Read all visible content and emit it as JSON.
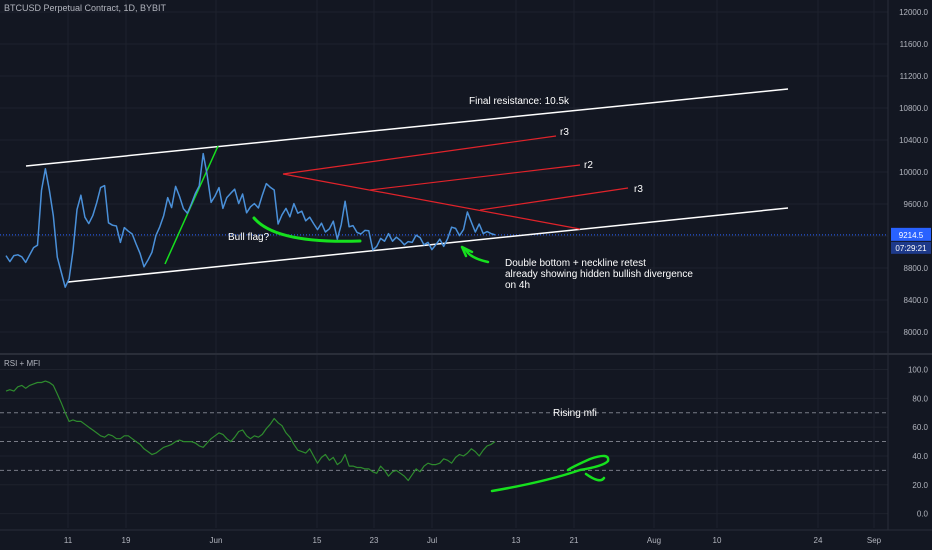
{
  "header": {
    "symbol_title": "BTCUSD Perpetual Contract, 1D, BYBIT",
    "indicator_title": "RSI + MFI"
  },
  "colors": {
    "background": "#131722",
    "price_line": "#4a90d9",
    "channel": "#ffffff",
    "resistance": "#e0232a",
    "drawing_green": "#16e01e",
    "indicator_line": "#2e8b2e",
    "grid": "#1e222d",
    "axis_text": "#b2b5be",
    "price_tag": "#2962ff"
  },
  "icons": [
    "arrow-up-drawing",
    "curve-drawing"
  ],
  "chart_data": [
    {
      "type": "line",
      "title": "BTCUSD Perpetual Contract, 1D, BYBIT",
      "x_tick_labels": [
        "11",
        "19",
        "Jun",
        "15",
        "23",
        "Jul",
        "13",
        "21",
        "Aug",
        "10",
        "24",
        "Sep"
      ],
      "y_ticks": [
        8000,
        8400,
        8800,
        9200,
        9600,
        10000,
        10400,
        10800,
        11200,
        11600,
        12000
      ],
      "y_tick_labels": [
        "8000.0",
        "8400.0",
        "8800.0",
        "9200.0",
        "9600.0",
        "10000.0",
        "10400.0",
        "10800.0",
        "11200.0",
        "11600.0",
        "12000.0"
      ],
      "ylim": [
        7750,
        12150
      ],
      "last_price": "9214.5",
      "countdown": "07:29:21",
      "series": [
        {
          "x": [
            0,
            4,
            8,
            12,
            16,
            20,
            24,
            28,
            32,
            36,
            40,
            44,
            48,
            52,
            56,
            60,
            64,
            68,
            72,
            76,
            80,
            84,
            88,
            92,
            96,
            100,
            104,
            108,
            112,
            116,
            120,
            124,
            128,
            132,
            136,
            140,
            144,
            148,
            152,
            156,
            160,
            164,
            168,
            172,
            176,
            180,
            184,
            188,
            192,
            196,
            200,
            204,
            208,
            212,
            216,
            220,
            224,
            228,
            232,
            236,
            240,
            244,
            248,
            252,
            256,
            260,
            264,
            268,
            272,
            276,
            280,
            284,
            288,
            292,
            296,
            300,
            304,
            308,
            312,
            316,
            320,
            324,
            328,
            332,
            336,
            340,
            344,
            348,
            352,
            356,
            360,
            364,
            368,
            372,
            376,
            380,
            384,
            388,
            392,
            396,
            400,
            404,
            408,
            412,
            416,
            420,
            424,
            428,
            432,
            436,
            440,
            444,
            448,
            452,
            456,
            460,
            464,
            468,
            472,
            476,
            480,
            484,
            488,
            492,
            496
          ],
          "y": [
            8955,
            8880,
            8955,
            8965,
            8940,
            8870,
            8965,
            9055,
            9085,
            9770,
            10040,
            9770,
            9455,
            8935,
            8750,
            8560,
            8665,
            9015,
            9530,
            9710,
            9435,
            9355,
            9455,
            9615,
            9805,
            9830,
            9365,
            9335,
            9325,
            9120,
            9305,
            9260,
            9225,
            9100,
            8980,
            8815,
            8900,
            8995,
            9205,
            9315,
            9455,
            9680,
            9555,
            9820,
            9695,
            9540,
            9485,
            9600,
            9730,
            9825,
            10230,
            9965,
            9620,
            9700,
            9805,
            9545,
            9680,
            9735,
            9785,
            9605,
            9725,
            9490,
            9565,
            9605,
            9550,
            9710,
            9855,
            9810,
            9775,
            9350,
            9465,
            9545,
            9440,
            9605,
            9485,
            9510,
            9390,
            9435,
            9355,
            9280,
            9360,
            9250,
            9290,
            9385,
            9160,
            9340,
            9635,
            9315,
            9330,
            9245,
            9225,
            9270,
            9265,
            9025,
            9070,
            9170,
            9135,
            9230,
            9135,
            9185,
            9145,
            9090,
            9130,
            9120,
            9210,
            9180,
            9090,
            9120,
            9030,
            9090,
            9160,
            9070,
            9170,
            9310,
            9295,
            9205,
            9280,
            9500,
            9375,
            9250,
            9350,
            9230,
            9255,
            9230,
            9215
          ]
        }
      ],
      "annotations": [
        {
          "text": "Final resistance: 10.5k"
        },
        {
          "text": "r3"
        },
        {
          "text": "r2"
        },
        {
          "text": "r3"
        },
        {
          "text": "Bull flag?"
        },
        {
          "text": "Double bottom + neckline retest"
        },
        {
          "text": "already showing hidden bullish divergence"
        },
        {
          "text": "on 4h"
        }
      ]
    },
    {
      "type": "line",
      "title": "RSI + MFI",
      "y_ticks": [
        0,
        20,
        40,
        60,
        80,
        100
      ],
      "y_tick_labels": [
        "0.0",
        "20.0",
        "40.0",
        "60.0",
        "80.0",
        "100.0"
      ],
      "ylim": [
        -10,
        108
      ],
      "reference_levels": [
        70,
        50,
        30
      ],
      "series": [
        {
          "x": [
            0,
            4,
            8,
            12,
            16,
            20,
            24,
            28,
            32,
            36,
            40,
            44,
            48,
            52,
            56,
            60,
            64,
            68,
            72,
            76,
            80,
            84,
            88,
            92,
            96,
            100,
            104,
            108,
            112,
            116,
            120,
            124,
            128,
            132,
            136,
            140,
            144,
            148,
            152,
            156,
            160,
            164,
            168,
            172,
            176,
            180,
            184,
            188,
            192,
            196,
            200,
            204,
            208,
            212,
            216,
            220,
            224,
            228,
            232,
            236,
            240,
            244,
            248,
            252,
            256,
            260,
            264,
            268,
            272,
            276,
            280,
            284,
            288,
            292,
            296,
            300,
            304,
            308,
            312,
            316,
            320,
            324,
            328,
            332,
            336,
            340,
            344,
            348,
            352,
            356,
            360,
            364,
            368,
            372,
            376,
            380,
            384,
            388,
            392,
            396,
            400,
            404,
            408,
            412,
            416,
            420,
            424,
            428,
            432,
            436,
            440,
            444,
            448,
            452,
            456,
            460,
            464,
            468,
            472,
            476,
            480,
            484,
            488,
            492,
            496
          ],
          "y": [
            85,
            86,
            85,
            88,
            89,
            87,
            89,
            90,
            91,
            91,
            92,
            91,
            89,
            83,
            77,
            70,
            64,
            65,
            64,
            64,
            62,
            60,
            58,
            56,
            54,
            53,
            55,
            54,
            52,
            52,
            54,
            54,
            52,
            50,
            48,
            45,
            43,
            41,
            42,
            44,
            46,
            47,
            48,
            50,
            51,
            50,
            50,
            50,
            49,
            47,
            46,
            49,
            52,
            54,
            56,
            55,
            52,
            50,
            53,
            57,
            58,
            54,
            52,
            54,
            53,
            55,
            59,
            62,
            66,
            63,
            61,
            56,
            53,
            48,
            44,
            43,
            42,
            45,
            40,
            35,
            39,
            41,
            37,
            39,
            34,
            36,
            41,
            33,
            33,
            32,
            32,
            31,
            31,
            29,
            28,
            33,
            30,
            26,
            29,
            30,
            28,
            26,
            23,
            27,
            31,
            29,
            33,
            35,
            34,
            34,
            35,
            38,
            37,
            35,
            39,
            41,
            40,
            42,
            45,
            43,
            40,
            44,
            47,
            48,
            50
          ]
        }
      ],
      "annotations": [
        {
          "text": "Rising mfi"
        }
      ]
    }
  ]
}
